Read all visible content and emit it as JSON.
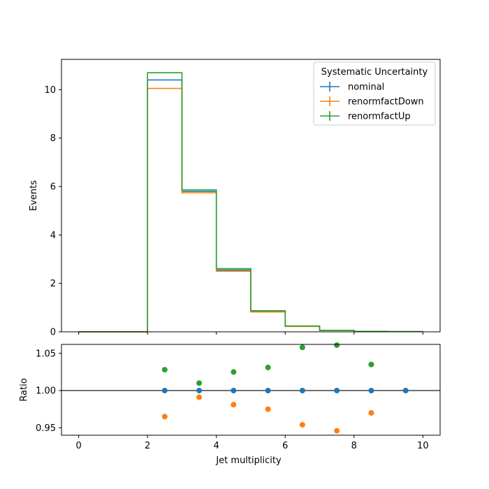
{
  "chart_data": [
    {
      "type": "line",
      "drawstyle": "step-histogram",
      "ylabel": "Events",
      "xlim": [
        -0.5,
        10.5
      ],
      "ylim": [
        0,
        11.25
      ],
      "bin_edges": [
        0,
        1,
        2,
        3,
        4,
        5,
        6,
        7,
        8,
        9,
        10
      ],
      "series": [
        {
          "name": "nominal",
          "color": "#1f77b4",
          "values": [
            0,
            0,
            10.4,
            5.8,
            2.55,
            0.84,
            0.23,
            0.06,
            0.02,
            0.01
          ]
        },
        {
          "name": "renormfactDown",
          "color": "#ff7f0e",
          "values": [
            0,
            0,
            10.05,
            5.74,
            2.5,
            0.82,
            0.22,
            0.057,
            0.019,
            0.01
          ]
        },
        {
          "name": "renormfactUp",
          "color": "#2ca02c",
          "values": [
            0,
            0,
            10.7,
            5.86,
            2.61,
            0.87,
            0.24,
            0.064,
            0.021,
            0.01
          ]
        }
      ],
      "yticks": [
        0,
        2,
        4,
        6,
        8,
        10
      ],
      "legend": {
        "title": "Systematic Uncertainty",
        "position": "top-right"
      }
    },
    {
      "type": "scatter",
      "xlabel": "Jet multiplicity",
      "ylabel": "Ratio",
      "xlim": [
        -0.5,
        10.5
      ],
      "ylim": [
        0.94,
        1.062
      ],
      "reference_line": 1.0,
      "series": [
        {
          "name": "nominal",
          "color": "#1f77b4",
          "x": [
            2.5,
            3.5,
            4.5,
            5.5,
            6.5,
            7.5,
            8.5,
            9.5
          ],
          "y": [
            1.0,
            1.0,
            1.0,
            1.0,
            1.0,
            1.0,
            1.0,
            1.0
          ]
        },
        {
          "name": "renormfactDown",
          "color": "#ff7f0e",
          "x": [
            2.5,
            3.5,
            4.5,
            5.5,
            6.5,
            7.5,
            8.5
          ],
          "y": [
            0.965,
            0.991,
            0.981,
            0.975,
            0.954,
            0.946,
            0.97
          ]
        },
        {
          "name": "renormfactUp",
          "color": "#2ca02c",
          "x": [
            2.5,
            3.5,
            4.5,
            5.5,
            6.5,
            7.5,
            8.5
          ],
          "y": [
            1.028,
            1.01,
            1.025,
            1.031,
            1.058,
            1.061,
            1.035
          ]
        }
      ],
      "xticks": [
        0,
        2,
        4,
        6,
        8,
        10
      ],
      "yticks": [
        0.95,
        1.0,
        1.05
      ],
      "ytick_labels": [
        "0.95",
        "1.00",
        "1.05"
      ]
    }
  ]
}
